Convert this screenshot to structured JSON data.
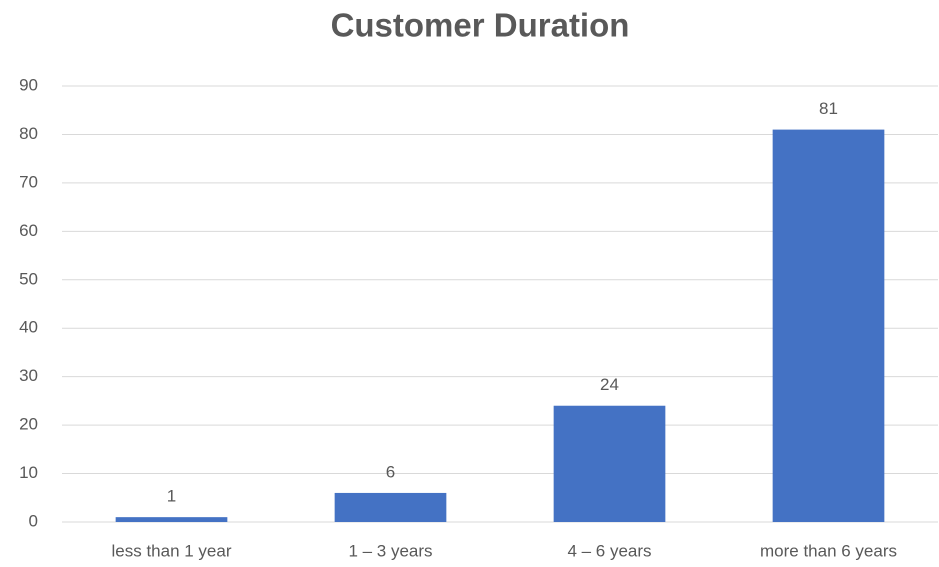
{
  "chart_data": {
    "type": "bar",
    "title": "Customer Duration",
    "categories": [
      "less than 1 year",
      "1 – 3 years",
      "4 – 6 years",
      "more than 6 years"
    ],
    "values": [
      1,
      6,
      24,
      81
    ],
    "color": "#4472c4",
    "ylim": [
      0,
      90
    ],
    "yticks": [
      0,
      10,
      20,
      30,
      40,
      50,
      60,
      70,
      80,
      90
    ],
    "grid": true,
    "data_labels": true
  }
}
